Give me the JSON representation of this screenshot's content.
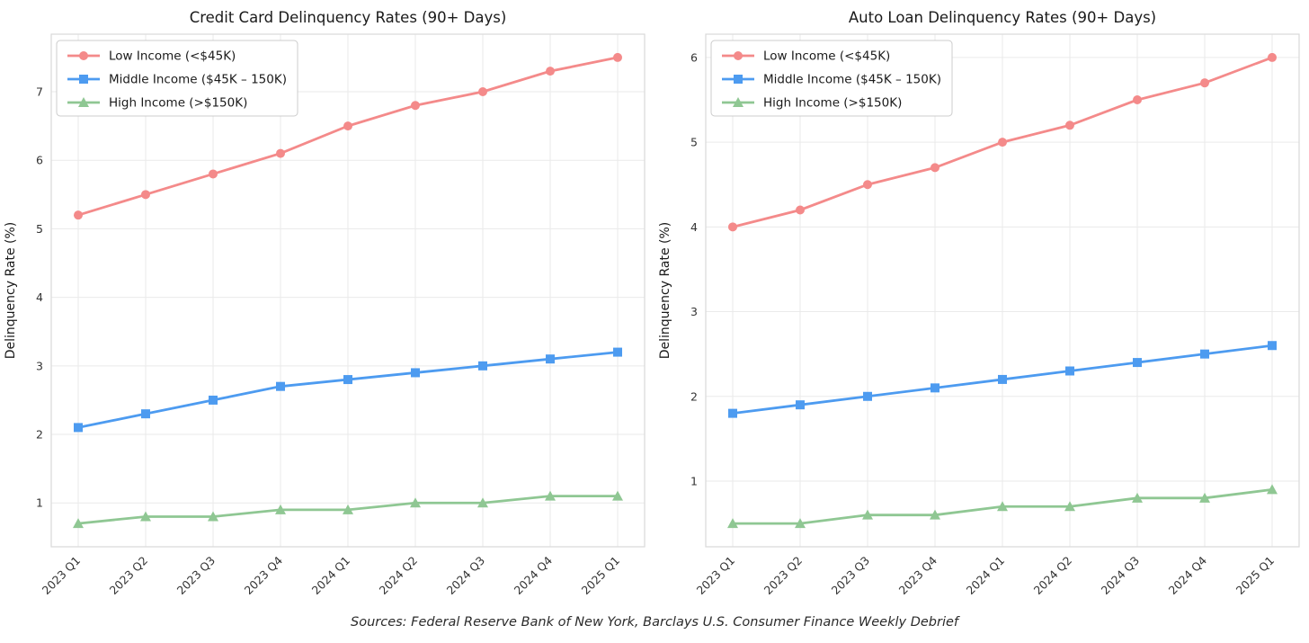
{
  "page": {
    "caption": "Sources: Federal Reserve Bank of New York, Barclays U.S. Consumer Finance Weekly Debrief"
  },
  "colors": {
    "low_income": "#F48A8A",
    "middle_income": "#4D9BF0",
    "high_income": "#8FC793",
    "grid": "#EAEAEA",
    "spine": "#D9D9D9",
    "tick_text": "#333333",
    "legend_border": "#CCCCCC"
  },
  "chart_data": [
    {
      "type": "line",
      "title": "Credit Card Delinquency Rates (90+ Days)",
      "xlabel": "",
      "ylabel": "Delinquency Rate (%)",
      "categories": [
        "2023 Q1",
        "2023 Q2",
        "2023 Q3",
        "2023 Q4",
        "2024 Q1",
        "2024 Q2",
        "2024 Q3",
        "2024 Q4",
        "2025 Q1"
      ],
      "series": [
        {
          "name": "Low Income (<$45K)",
          "marker": "circle",
          "color": "#F48A8A",
          "values": [
            5.2,
            5.5,
            5.8,
            6.1,
            6.5,
            6.8,
            7.0,
            7.3,
            7.5
          ]
        },
        {
          "name": "Middle Income ($45K – 150K)",
          "marker": "square",
          "color": "#4D9BF0",
          "values": [
            2.1,
            2.3,
            2.5,
            2.7,
            2.8,
            2.9,
            3.0,
            3.1,
            3.2
          ]
        },
        {
          "name": "High Income (>$150K)",
          "marker": "triangle",
          "color": "#8FC793",
          "values": [
            0.7,
            0.8,
            0.8,
            0.9,
            0.9,
            1.0,
            1.0,
            1.1,
            1.1
          ]
        }
      ],
      "ylim": [
        0.36,
        7.84
      ],
      "yticks": [
        1,
        2,
        3,
        4,
        5,
        6,
        7
      ],
      "grid": true,
      "legend_position": "upper-left"
    },
    {
      "type": "line",
      "title": "Auto Loan Delinquency Rates (90+ Days)",
      "xlabel": "",
      "ylabel": "Delinquency Rate (%)",
      "categories": [
        "2023 Q1",
        "2023 Q2",
        "2023 Q3",
        "2023 Q4",
        "2024 Q1",
        "2024 Q2",
        "2024 Q3",
        "2024 Q4",
        "2025 Q1"
      ],
      "series": [
        {
          "name": "Low Income (<$45K)",
          "marker": "circle",
          "color": "#F48A8A",
          "values": [
            4.0,
            4.2,
            4.5,
            4.7,
            5.0,
            5.2,
            5.5,
            5.7,
            6.0
          ]
        },
        {
          "name": "Middle Income ($45K – 150K)",
          "marker": "square",
          "color": "#4D9BF0",
          "values": [
            1.8,
            1.9,
            2.0,
            2.1,
            2.2,
            2.3,
            2.4,
            2.5,
            2.6
          ]
        },
        {
          "name": "High Income (>$150K)",
          "marker": "triangle",
          "color": "#8FC793",
          "values": [
            0.5,
            0.5,
            0.6,
            0.6,
            0.7,
            0.7,
            0.8,
            0.8,
            0.9
          ]
        }
      ],
      "ylim": [
        0.225,
        6.275
      ],
      "yticks": [
        1,
        2,
        3,
        4,
        5,
        6
      ],
      "grid": true,
      "legend_position": "upper-left"
    }
  ]
}
